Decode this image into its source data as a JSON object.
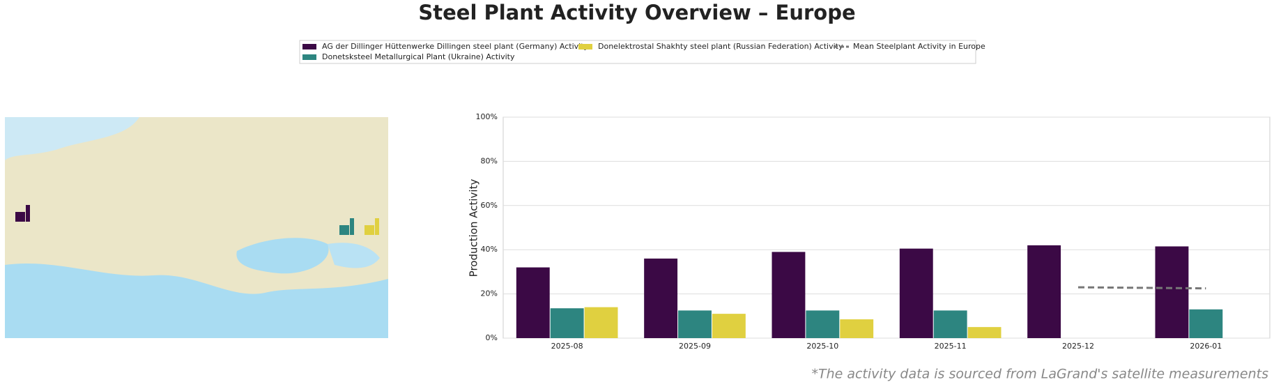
{
  "chart_data": {
    "type": "bar",
    "title": "Steel Plant Activity Overview – Europe",
    "y_label": "Production Activity",
    "footnote": "*The activity data is sourced from LaGrand's satellite measurements",
    "categories": [
      "2025-08",
      "2025-09",
      "2025-10",
      "2025-11",
      "2025-12",
      "2026-01"
    ],
    "series": [
      {
        "name": "AG der Dillinger Hüttenwerke Dillingen steel plant (Germany) Activity",
        "color": "#3b0945",
        "values": [
          32,
          36,
          39,
          40.5,
          42,
          41.5
        ]
      },
      {
        "name": "Donetsksteel Metallurgical Plant (Ukraine) Activity",
        "color": "#2d8580",
        "values": [
          13.5,
          12.5,
          12.5,
          12.5,
          null,
          13
        ]
      },
      {
        "name": "Donelektrostal Shakhty steel plant (Russian Federation) Activity",
        "color": "#e0d040",
        "values": [
          14,
          11,
          8.5,
          5,
          null,
          null
        ]
      },
      {
        "name": "Mean Steelplant Activity in Europe",
        "type": "line",
        "color": "#777777",
        "dashed": true,
        "values": [
          null,
          null,
          null,
          null,
          23,
          22.5
        ]
      }
    ],
    "ylim": [
      0,
      100
    ],
    "yticks": [
      {
        "value": 0,
        "label": "0%"
      },
      {
        "value": 20,
        "label": "20%"
      },
      {
        "value": 40,
        "label": "40%"
      },
      {
        "value": 60,
        "label": "60%"
      },
      {
        "value": 80,
        "label": "80%"
      },
      {
        "value": 100,
        "label": "100%"
      }
    ],
    "grid": true
  }
}
